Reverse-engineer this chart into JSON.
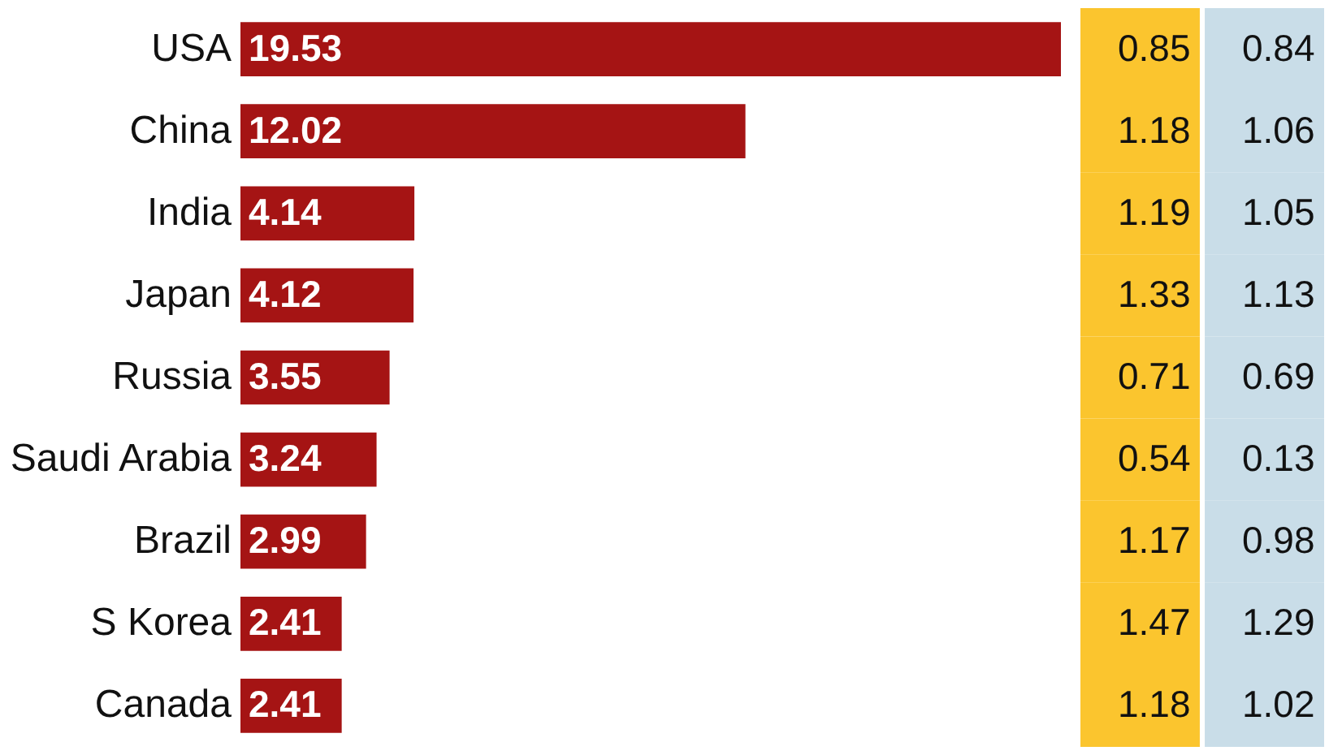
{
  "chart_data": [
    {
      "type": "bar",
      "orientation": "horizontal",
      "categories": [
        "USA",
        "China",
        "India",
        "Japan",
        "Russia",
        "Saudi Arabia",
        "Brazil",
        "S Korea",
        "Canada"
      ],
      "values": [
        19.53,
        12.02,
        4.14,
        4.12,
        3.55,
        3.24,
        2.99,
        2.41,
        2.41
      ],
      "color": "#a51414",
      "data_labels": true,
      "tick_labels": "y"
    },
    {
      "type": "other",
      "annotations": [
        "0.85",
        "0.84",
        "1.18",
        "1.06",
        "1.19",
        "1.05",
        "1.33",
        "1.13",
        "0.71",
        "0.69",
        "0.54",
        "0.13",
        "1.17",
        "0.98",
        "1.47",
        "1.29",
        "1.18",
        "1.02"
      ],
      "colors": [
        "#fbc52e",
        "#c9dde8"
      ]
    }
  ]
}
